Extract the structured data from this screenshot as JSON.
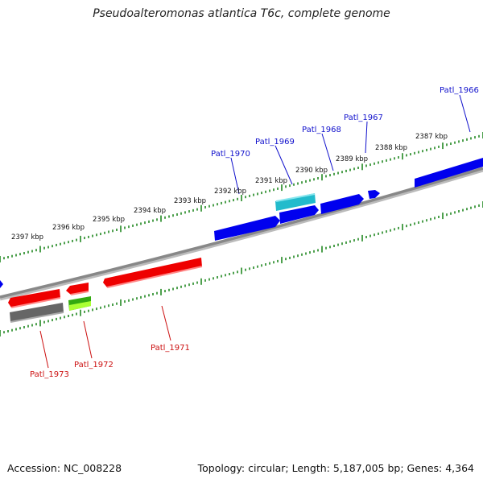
{
  "title": "Pseudoalteromonas atlantica T6c, complete genome",
  "footer": {
    "accession": "Accession: NC_008228",
    "topology": "Topology: circular; Length: 5,187,005 bp; Genes: 4,364"
  },
  "colors": {
    "forward_gene": "#0000ee",
    "reverse_gene": "#ee0000",
    "rna_gene": "#22bbcc",
    "pseudo_gene": "#666666",
    "green_gene": "#66cc22",
    "backbone": "#888888",
    "ticks": "#228822",
    "forward_label": "#1010cc",
    "reverse_label": "#cc1010"
  },
  "scale_ticks": [
    "2387 kbp",
    "2388 kbp",
    "2389 kbp",
    "2390 kbp",
    "2391 kbp",
    "2392 kbp",
    "2393 kbp",
    "2394 kbp",
    "2395 kbp",
    "2396 kbp",
    "2397 kbp"
  ],
  "gene_labels": {
    "forward": [
      "Patl_1966",
      "Patl_1967",
      "Patl_1968",
      "Patl_1969",
      "Patl_1970"
    ],
    "reverse": [
      "Patl_1971",
      "Patl_1972",
      "Patl_1973"
    ]
  }
}
